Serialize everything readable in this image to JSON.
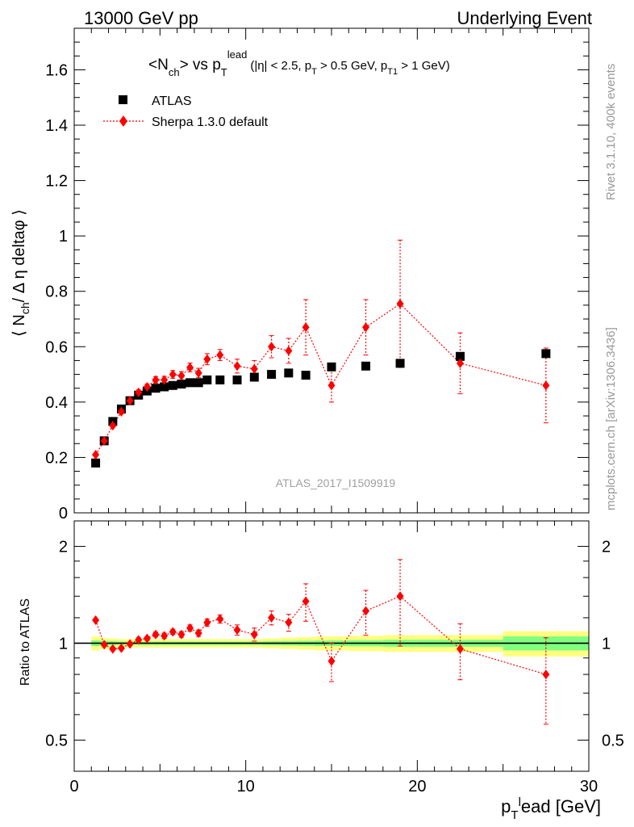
{
  "header": {
    "left": "13000 GeV pp",
    "right": "Underlying Event"
  },
  "title": {
    "main_pre": "<N",
    "main_sub": "ch",
    "main_mid": "> vs p",
    "main_sub2": "T",
    "main_sup": "lead",
    "cuts": "(|η| < 2.5, p",
    "cuts_sub1": "T",
    "cuts_mid": " > 0.5 GeV, p",
    "cuts_sub2": "T1",
    "cuts_end": " > 1 GeV)"
  },
  "side_labels": {
    "rivet": "Rivet 3.1.10,  400k events",
    "mcplots": "mcplots.cern.ch [arXiv:1306.3436]"
  },
  "analysis_label": "ATLAS_2017_I1509919",
  "colors": {
    "data": "#000000",
    "mc": "#ff0000",
    "band_outer": "#ffff80",
    "band_inner": "#80ff80"
  },
  "chart_data": [
    {
      "type": "scatter",
      "panel": "main",
      "ylabel": "⟨ N_ch / Δ η deltaφ ⟩",
      "xlim": [
        0,
        30
      ],
      "ylim": [
        0,
        1.75
      ],
      "yticks": [
        0,
        0.2,
        0.4,
        0.6,
        0.8,
        1,
        1.2,
        1.4,
        1.6
      ],
      "ytick_labels": [
        "0",
        "0.2",
        "0.4",
        "0.6",
        "0.8",
        "1",
        "1.2",
        "1.4",
        "1.6"
      ],
      "legend_position": "top-left",
      "series": [
        {
          "name": "ATLAS",
          "marker": "square",
          "x": [
            1.25,
            1.75,
            2.25,
            2.75,
            3.25,
            3.75,
            4.25,
            4.75,
            5.25,
            5.75,
            6.25,
            6.75,
            7.25,
            7.75,
            8.5,
            9.5,
            10.5,
            11.5,
            12.5,
            13.5,
            15,
            17,
            19,
            22.5,
            27.5
          ],
          "y": [
            0.18,
            0.26,
            0.33,
            0.375,
            0.405,
            0.425,
            0.44,
            0.45,
            0.455,
            0.46,
            0.465,
            0.47,
            0.47,
            0.48,
            0.48,
            0.48,
            0.49,
            0.5,
            0.505,
            0.497,
            0.527,
            0.53,
            0.54,
            0.565,
            0.575
          ]
        },
        {
          "name": "Sherpa 1.3.0 default",
          "marker": "diamond",
          "linestyle": "dotted",
          "x": [
            1.25,
            1.75,
            2.25,
            2.75,
            3.25,
            3.75,
            4.25,
            4.75,
            5.25,
            5.75,
            6.25,
            6.75,
            7.25,
            7.75,
            8.5,
            9.5,
            10.5,
            11.5,
            12.5,
            13.5,
            15,
            17,
            19,
            22.5,
            27.5
          ],
          "y": [
            0.21,
            0.26,
            0.315,
            0.365,
            0.405,
            0.435,
            0.455,
            0.48,
            0.48,
            0.5,
            0.495,
            0.525,
            0.505,
            0.555,
            0.57,
            0.53,
            0.52,
            0.6,
            0.585,
            0.67,
            0.46,
            0.67,
            0.755,
            0.54,
            0.46
          ],
          "yerr": [
            0.005,
            0.005,
            0.006,
            0.007,
            0.008,
            0.009,
            0.01,
            0.012,
            0.013,
            0.014,
            0.015,
            0.016,
            0.017,
            0.02,
            0.02,
            0.025,
            0.03,
            0.04,
            0.045,
            0.1,
            0.06,
            0.1,
            0.23,
            0.11,
            0.135
          ]
        }
      ]
    },
    {
      "type": "scatter",
      "panel": "ratio",
      "xlabel": "p_T^lead [GeV]",
      "ylabel": "Ratio to ATLAS",
      "xlim": [
        0,
        30
      ],
      "ylim": [
        0.4,
        2.4
      ],
      "yscale": "log",
      "yticks": [
        0.5,
        1,
        2
      ],
      "ytick_labels": [
        "0.5",
        "1",
        "2"
      ],
      "xticks": [
        0,
        10,
        20,
        30
      ],
      "xtick_labels": [
        "0",
        "10",
        "20",
        "30"
      ],
      "band_edges": [
        1,
        1.5,
        2,
        2.5,
        3,
        3.5,
        4,
        4.5,
        5,
        5.5,
        6,
        6.5,
        7,
        7.5,
        8,
        9,
        10,
        11,
        12,
        13,
        14,
        16,
        18,
        20,
        25,
        30
      ],
      "band_outer": [
        0.05,
        0.04,
        0.035,
        0.03,
        0.03,
        0.03,
        0.03,
        0.03,
        0.03,
        0.03,
        0.03,
        0.03,
        0.03,
        0.03,
        0.03,
        0.03,
        0.03,
        0.035,
        0.04,
        0.045,
        0.05,
        0.055,
        0.06,
        0.06,
        0.09
      ],
      "band_inner": [
        0.02,
        0.018,
        0.015,
        0.012,
        0.012,
        0.012,
        0.012,
        0.012,
        0.012,
        0.012,
        0.012,
        0.012,
        0.012,
        0.012,
        0.012,
        0.012,
        0.012,
        0.014,
        0.016,
        0.018,
        0.02,
        0.022,
        0.025,
        0.025,
        0.05
      ],
      "series": [
        {
          "name": "Sherpa 1.3.0 default",
          "marker": "diamond",
          "linestyle": "dotted",
          "x": [
            1.25,
            1.75,
            2.25,
            2.75,
            3.25,
            3.75,
            4.25,
            4.75,
            5.25,
            5.75,
            6.25,
            6.75,
            7.25,
            7.75,
            8.5,
            9.5,
            10.5,
            11.5,
            12.5,
            13.5,
            15,
            17,
            19,
            22.5,
            27.5
          ],
          "y": [
            1.18,
            0.99,
            0.96,
            0.965,
            0.995,
            1.025,
            1.035,
            1.065,
            1.055,
            1.085,
            1.065,
            1.115,
            1.075,
            1.16,
            1.19,
            1.1,
            1.065,
            1.2,
            1.16,
            1.35,
            0.88,
            1.26,
            1.4,
            0.96,
            0.8
          ],
          "yerr": [
            0.01,
            0.01,
            0.012,
            0.012,
            0.012,
            0.015,
            0.015,
            0.018,
            0.02,
            0.02,
            0.022,
            0.025,
            0.025,
            0.03,
            0.035,
            0.04,
            0.05,
            0.06,
            0.07,
            0.18,
            0.12,
            0.2,
            0.42,
            0.19,
            0.24
          ]
        }
      ]
    }
  ]
}
